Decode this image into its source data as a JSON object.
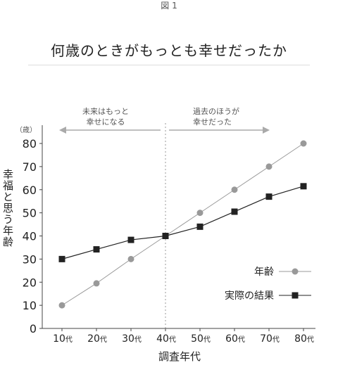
{
  "figure_label": "図 1",
  "chart_data": {
    "type": "line",
    "title": "何歳のときがもっとも幸せだったか",
    "xlabel": "調査年代",
    "ylabel": "幸福と思う年齢",
    "y_unit": "（歳）",
    "categories": [
      "10代",
      "20代",
      "30代",
      "40代",
      "50代",
      "60代",
      "70代",
      "80代"
    ],
    "x_ticks": [
      {
        "num": "10",
        "suffix": "代"
      },
      {
        "num": "20",
        "suffix": "代"
      },
      {
        "num": "30",
        "suffix": "代"
      },
      {
        "num": "40",
        "suffix": "代"
      },
      {
        "num": "50",
        "suffix": "代"
      },
      {
        "num": "60",
        "suffix": "代"
      },
      {
        "num": "70",
        "suffix": "代"
      },
      {
        "num": "80",
        "suffix": "代"
      }
    ],
    "y_ticks": [
      0,
      10,
      20,
      30,
      40,
      50,
      60,
      70,
      80
    ],
    "ylim": [
      0,
      80
    ],
    "grid": false,
    "legend_position": "bottom-right",
    "series": [
      {
        "name": "年齢",
        "marker": "circle",
        "color": "#999999",
        "values": [
          10,
          19.5,
          30,
          40,
          50,
          60,
          70,
          80
        ]
      },
      {
        "name": "実際の結果",
        "marker": "square",
        "color": "#222222",
        "values": [
          30,
          34.2,
          38.3,
          40,
          44,
          50.5,
          57,
          61.5
        ]
      }
    ],
    "annotations": {
      "left": [
        "未来はもっと",
        "幸せになる"
      ],
      "right": [
        "過去のほうが",
        "幸せだった"
      ],
      "divider_category": "40代"
    }
  }
}
